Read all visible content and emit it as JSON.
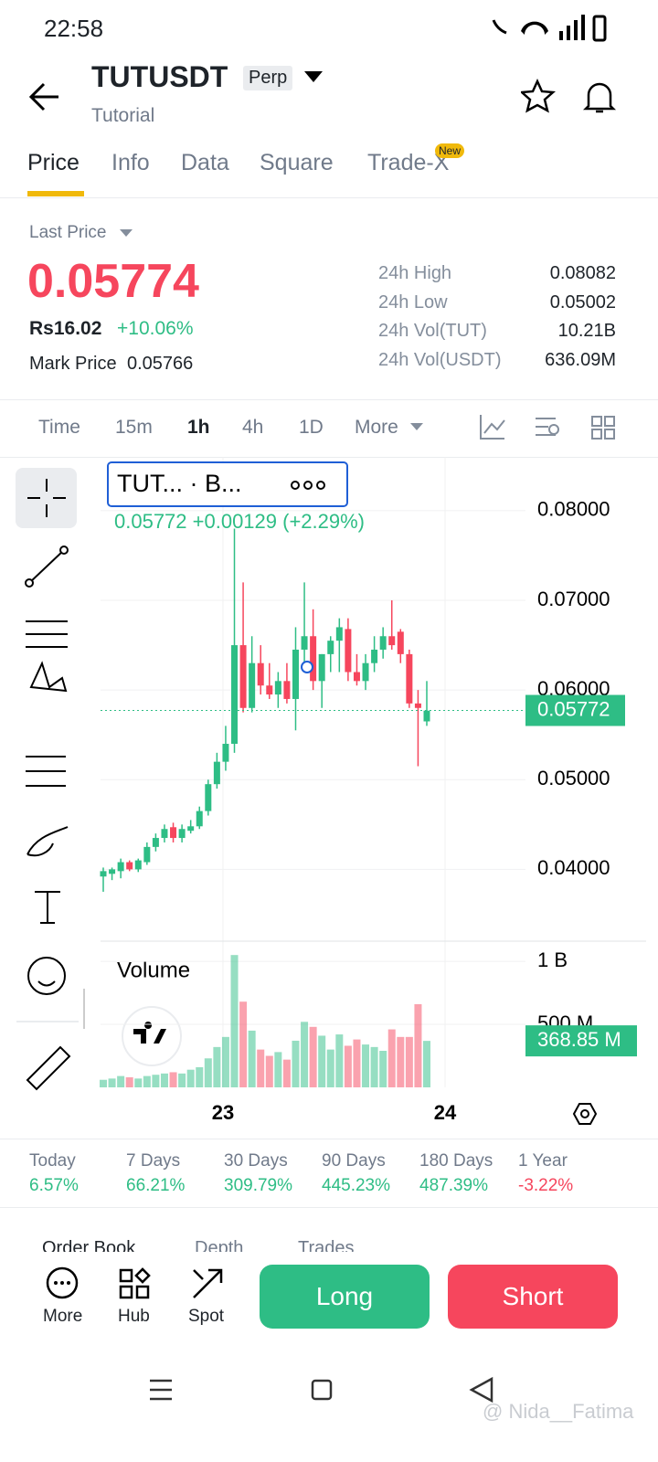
{
  "status_bar": {
    "time": "22:58"
  },
  "header": {
    "symbol": "TUTUSDT",
    "badge": "Perp",
    "subtitle": "Tutorial"
  },
  "tabs": {
    "items": [
      "Price",
      "Info",
      "Data",
      "Square",
      "Trade-X"
    ],
    "new_badge": "New",
    "active": 0
  },
  "price_panel": {
    "label": "Last Price",
    "last_price": "0.05774",
    "local_price": "Rs16.02",
    "change": "+10.06%",
    "mark_label": "Mark Price",
    "mark_price": "0.05766",
    "stats": [
      {
        "label": "24h High",
        "value": "0.08082"
      },
      {
        "label": "24h Low",
        "value": "0.05002"
      },
      {
        "label": "24h Vol(TUT)",
        "value": "10.21B"
      },
      {
        "label": "24h Vol(USDT)",
        "value": "636.09M"
      }
    ]
  },
  "intervals": {
    "items": [
      "Time",
      "15m",
      "1h",
      "4h",
      "1D",
      "More"
    ],
    "active": 2
  },
  "chart_data": {
    "type": "candlestick",
    "legend_title": "TUT...  · B...",
    "legend_values": "0.05772  +0.00129 (+2.29%)",
    "open": [
      0.0392,
      0.0395,
      0.0398,
      0.0408,
      0.04,
      0.0408,
      0.0425,
      0.0435,
      0.0447,
      0.0435,
      0.0443,
      0.0448,
      0.0465,
      0.0495,
      0.052,
      0.054,
      0.065,
      0.058,
      0.063,
      0.0605,
      0.0595,
      0.061,
      0.059,
      0.0645,
      0.066,
      0.061,
      0.064,
      0.0655,
      0.0668,
      0.062,
      0.061,
      0.063,
      0.0645,
      0.066,
      0.0665,
      0.064,
      0.0585,
      0.0565
    ],
    "high": [
      0.0402,
      0.0402,
      0.0412,
      0.041,
      0.0412,
      0.043,
      0.044,
      0.045,
      0.0452,
      0.045,
      0.0455,
      0.047,
      0.05,
      0.053,
      0.056,
      0.078,
      0.072,
      0.066,
      0.065,
      0.063,
      0.062,
      0.063,
      0.067,
      0.072,
      0.069,
      0.064,
      0.066,
      0.068,
      0.068,
      0.064,
      0.064,
      0.066,
      0.067,
      0.07,
      0.0668,
      0.0645,
      0.06,
      0.061
    ],
    "low": [
      0.0375,
      0.0388,
      0.039,
      0.0398,
      0.0397,
      0.0405,
      0.042,
      0.043,
      0.043,
      0.043,
      0.044,
      0.0445,
      0.046,
      0.049,
      0.051,
      0.053,
      0.0575,
      0.0575,
      0.0595,
      0.059,
      0.058,
      0.0585,
      0.0555,
      0.063,
      0.06,
      0.058,
      0.062,
      0.062,
      0.061,
      0.0605,
      0.06,
      0.062,
      0.0635,
      0.0645,
      0.063,
      0.058,
      0.0515,
      0.056
    ],
    "close": [
      0.0398,
      0.04,
      0.0408,
      0.04,
      0.041,
      0.0425,
      0.0435,
      0.0445,
      0.0435,
      0.0445,
      0.0448,
      0.0465,
      0.0495,
      0.052,
      0.054,
      0.065,
      0.058,
      0.063,
      0.0605,
      0.0595,
      0.061,
      0.059,
      0.0645,
      0.066,
      0.061,
      0.064,
      0.0655,
      0.067,
      0.062,
      0.061,
      0.063,
      0.0645,
      0.066,
      0.065,
      0.064,
      0.0585,
      0.058,
      0.0577
    ],
    "up_color": "#2ebd85",
    "down_color": "#f6465d",
    "ylim": [
      0.0325,
      0.086
    ],
    "yticks": [
      {
        "value": 0.08,
        "label": "0.08000"
      },
      {
        "value": 0.07,
        "label": "0.07000"
      },
      {
        "value": 0.06,
        "label": "0.06000"
      },
      {
        "value": 0.05,
        "label": "0.05000"
      },
      {
        "value": 0.04,
        "label": "0.04000"
      }
    ],
    "last_price": 0.05772,
    "x_labels": [
      "23",
      "24"
    ],
    "volume": {
      "title": "Volume",
      "values": [
        60,
        70,
        90,
        80,
        70,
        90,
        100,
        110,
        120,
        110,
        140,
        160,
        230,
        320,
        400,
        1050,
        680,
        450,
        300,
        250,
        280,
        220,
        370,
        520,
        480,
        410,
        300,
        420,
        330,
        380,
        340,
        320,
        290,
        460,
        400,
        400,
        660,
        368.85
      ],
      "ylim": [
        0,
        1160
      ],
      "yticks": [
        {
          "value": 1000,
          "label": "1 B"
        },
        {
          "value": 500,
          "label": "500 M"
        }
      ],
      "current": {
        "value": 368.85,
        "label": "368.85 M"
      }
    }
  },
  "performance": [
    {
      "period": "Today",
      "change": "6.57%"
    },
    {
      "period": "7 Days",
      "change": "66.21%"
    },
    {
      "period": "30 Days",
      "change": "309.79%"
    },
    {
      "period": "90 Days",
      "change": "445.23%"
    },
    {
      "period": "180 Days",
      "change": "487.39%"
    },
    {
      "period": "1 Year",
      "change": "-3.22%"
    }
  ],
  "book_tabs": [
    "Order Book",
    "Depth",
    "Trades"
  ],
  "actions": {
    "more": "More",
    "hub": "Hub",
    "spot": "Spot",
    "long": "Long",
    "short": "Short"
  },
  "watermark": "@ Nida__Fatima"
}
